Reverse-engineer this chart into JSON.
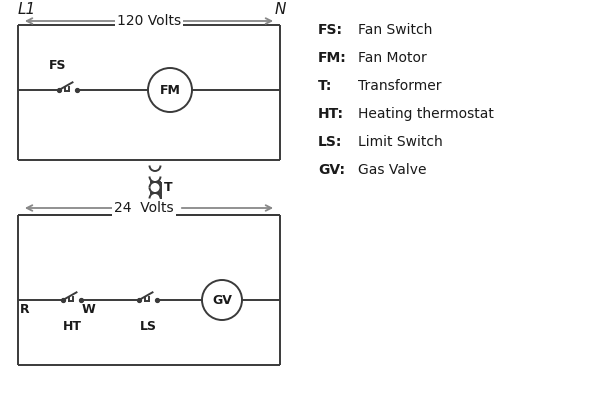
{
  "bg_color": "#ffffff",
  "line_color": "#3a3a3a",
  "arrow_color": "#888888",
  "text_color": "#1a1a1a",
  "legend": [
    [
      "FS:",
      "Fan Switch"
    ],
    [
      "FM:",
      "Fan Motor"
    ],
    [
      "T:",
      "Transformer"
    ],
    [
      "HT:",
      "Heating thermostat"
    ],
    [
      "LS:",
      "Limit Switch"
    ],
    [
      "GV:",
      "Gas Valve"
    ]
  ],
  "L1_label": "L1",
  "N_label": "N",
  "v120_label": "120 Volts",
  "v24_label": "24  Volts",
  "FS_label": "FS",
  "FM_label": "FM",
  "T_label": "T",
  "R_label": "R",
  "W_label": "W",
  "HT_label": "HT",
  "LS_label": "LS",
  "GV_label": "GV",
  "lw": 1.4,
  "font_size_label": 9,
  "font_size_legend": 10,
  "font_size_volt": 10,
  "font_size_header": 11
}
